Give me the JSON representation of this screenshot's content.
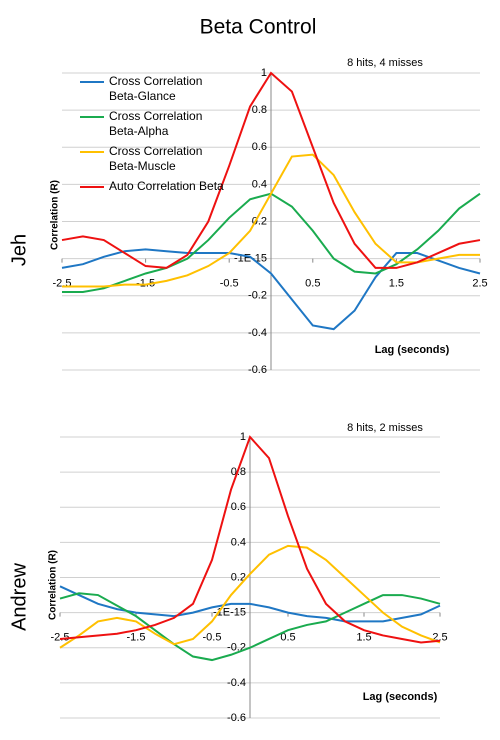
{
  "title": "Beta Control",
  "chart_data": [
    {
      "type": "line",
      "panel_label": "Jeh",
      "annotation": "8 hits, 4 misses",
      "y_label": "Correlation (R)",
      "x_label": "Lag (seconds)",
      "xlim": [
        -2.5,
        2.5
      ],
      "xticks": [
        -2.5,
        -1.5,
        -0.5,
        0.5,
        1.5,
        2.5
      ],
      "ylim": [
        -0.6,
        1
      ],
      "yticks": [
        1,
        0.8,
        0.6,
        0.4,
        0.2,
        {
          "value": 0,
          "label": "-1E-15"
        },
        -0.2,
        -0.4,
        -0.6
      ],
      "grid": true,
      "x": [
        -2.5,
        -2.25,
        -2,
        -1.75,
        -1.5,
        -1.25,
        -1,
        -0.75,
        -0.5,
        -0.25,
        0,
        0.25,
        0.5,
        0.75,
        1,
        1.25,
        1.5,
        1.75,
        2,
        2.25,
        2.5
      ],
      "series": [
        {
          "name": "Cross Correlation Beta-Glance",
          "color": "#1f77c4",
          "values": [
            -0.05,
            -0.03,
            0.01,
            0.04,
            0.05,
            0.04,
            0.03,
            0.03,
            0.03,
            0.01,
            -0.08,
            -0.22,
            -0.36,
            -0.38,
            -0.28,
            -0.1,
            0.03,
            0.03,
            -0.01,
            -0.05,
            -0.08
          ]
        },
        {
          "name": "Cross Correlation Beta-Alpha",
          "color": "#1aab4f",
          "values": [
            -0.18,
            -0.18,
            -0.16,
            -0.12,
            -0.08,
            -0.05,
            0,
            0.1,
            0.22,
            0.32,
            0.35,
            0.28,
            0.15,
            0.0,
            -0.07,
            -0.08,
            -0.03,
            0.05,
            0.15,
            0.27,
            0.35
          ]
        },
        {
          "name": "Cross Correlation Beta-Muscle",
          "color": "#ffc000",
          "values": [
            -0.15,
            -0.15,
            -0.15,
            -0.14,
            -0.14,
            -0.12,
            -0.09,
            -0.04,
            0.03,
            0.15,
            0.35,
            0.55,
            0.56,
            0.45,
            0.25,
            0.08,
            -0.02,
            -0.02,
            0.0,
            0.02,
            0.02
          ]
        },
        {
          "name": "Auto Correlation Beta",
          "color": "#ee1111",
          "values": [
            0.1,
            0.12,
            0.1,
            0.03,
            -0.04,
            -0.05,
            0.02,
            0.2,
            0.5,
            0.82,
            1.0,
            0.9,
            0.6,
            0.3,
            0.08,
            -0.05,
            -0.05,
            -0.02,
            0.03,
            0.08,
            0.1
          ]
        }
      ]
    },
    {
      "type": "line",
      "panel_label": "Andrew",
      "annotation": "8 hits, 2 misses",
      "y_label": "Correlation (R)",
      "x_label": "Lag (seconds)",
      "xlim": [
        -2.5,
        2.5
      ],
      "xticks": [
        -2.5,
        -1.5,
        -0.5,
        0.5,
        1.5,
        2.5
      ],
      "ylim": [
        -0.6,
        1
      ],
      "yticks": [
        1,
        0.8,
        0.6,
        0.4,
        0.2,
        {
          "value": 0,
          "label": "-1E-15"
        },
        -0.2,
        -0.4,
        -0.6
      ],
      "grid": true,
      "x": [
        -2.5,
        -2.25,
        -2,
        -1.75,
        -1.5,
        -1.25,
        -1,
        -0.75,
        -0.5,
        -0.25,
        0,
        0.25,
        0.5,
        0.75,
        1,
        1.25,
        1.5,
        1.75,
        2,
        2.25,
        2.5
      ],
      "series": [
        {
          "color": "#1f77c4",
          "values": [
            0.15,
            0.1,
            0.05,
            0.02,
            0,
            -0.01,
            -0.02,
            0,
            0.03,
            0.05,
            0.05,
            0.03,
            0,
            -0.02,
            -0.03,
            -0.05,
            -0.05,
            -0.05,
            -0.03,
            -0.01,
            0.04
          ]
        },
        {
          "color": "#1aab4f",
          "values": [
            0.08,
            0.11,
            0.1,
            0.04,
            -0.02,
            -0.1,
            -0.18,
            -0.25,
            -0.27,
            -0.24,
            -0.2,
            -0.15,
            -0.1,
            -0.07,
            -0.05,
            0.0,
            0.05,
            0.1,
            0.1,
            0.08,
            0.05
          ]
        },
        {
          "color": "#ffc000",
          "values": [
            -0.2,
            -0.13,
            -0.05,
            -0.03,
            -0.05,
            -0.12,
            -0.18,
            -0.15,
            -0.05,
            0.1,
            0.22,
            0.33,
            0.38,
            0.37,
            0.3,
            0.2,
            0.1,
            0.0,
            -0.08,
            -0.13,
            -0.17
          ]
        },
        {
          "color": "#ee1111",
          "values": [
            -0.15,
            -0.14,
            -0.13,
            -0.12,
            -0.1,
            -0.07,
            -0.03,
            0.05,
            0.3,
            0.7,
            1.0,
            0.88,
            0.55,
            0.25,
            0.05,
            -0.05,
            -0.1,
            -0.13,
            -0.15,
            -0.17,
            -0.16
          ]
        }
      ]
    }
  ]
}
